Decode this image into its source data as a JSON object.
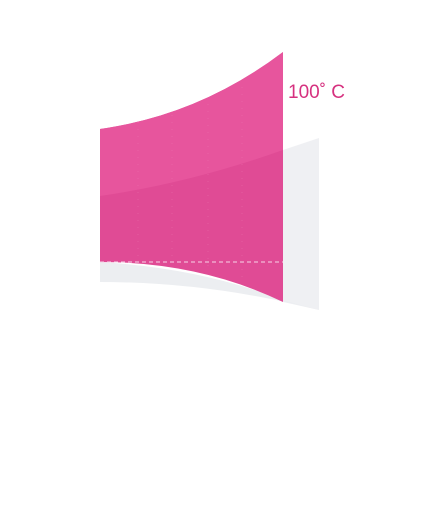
{
  "temperature": {
    "label": "100˚ C"
  },
  "colors": {
    "accent": "#e04b95",
    "accent_dark": "#dd4a8e",
    "text": "#d6317f",
    "backdrop": "#eff0f3",
    "shadow": "#eceef1",
    "dashed_line": "#f6d3e6"
  }
}
